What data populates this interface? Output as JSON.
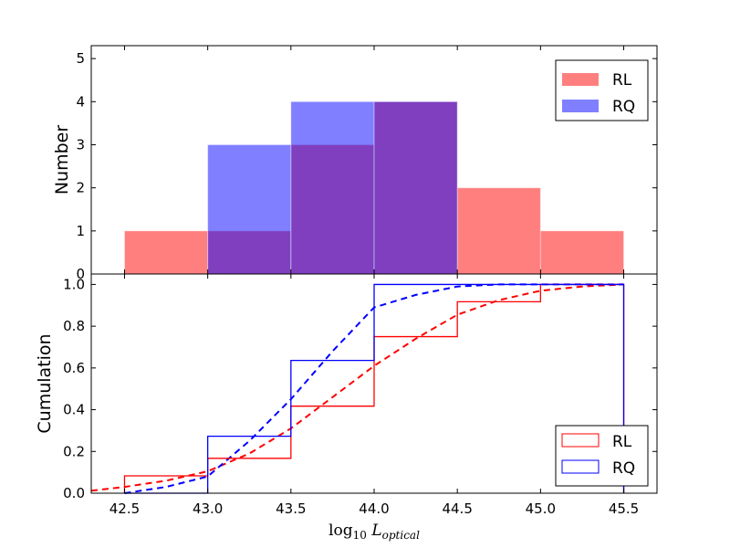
{
  "chart_data": [
    {
      "id": "hist",
      "type": "bar",
      "ylabel": "Number",
      "xlim": [
        42.3,
        45.7
      ],
      "ylim": [
        0,
        5.3
      ],
      "yticks": [
        0,
        1,
        2,
        3,
        4,
        5
      ],
      "bin_edges": [
        42.5,
        43.0,
        43.5,
        44.0,
        44.5,
        45.0,
        45.5
      ],
      "series": [
        {
          "name": "RL",
          "color": "#ff0000",
          "alpha": 0.5,
          "values": [
            1,
            1,
            3,
            4,
            2,
            1
          ]
        },
        {
          "name": "RQ",
          "color": "#0000ff",
          "alpha": 0.5,
          "values": [
            0,
            3,
            4,
            4,
            0,
            0
          ]
        }
      ],
      "legend": {
        "position": "top-right",
        "entries": [
          "RL",
          "RQ"
        ]
      }
    },
    {
      "id": "cum",
      "type": "line",
      "ylabel": "Cumulation",
      "xlabel_html": "log<tspan font-size='12' dy='4'>10</tspan><tspan dy='-4' font-style='italic'> L</tspan><tspan font-size='12' dy='4' font-style='italic'>optical</tspan>",
      "xlim": [
        42.3,
        45.7
      ],
      "ylim": [
        0,
        1.05
      ],
      "xticks": [
        "42.5",
        "43.0",
        "43.5",
        "44.0",
        "44.5",
        "45.0",
        "45.5"
      ],
      "yticks": [
        "0.0",
        "0.2",
        "0.4",
        "0.6",
        "0.8",
        "1.0"
      ],
      "step_series": [
        {
          "name": "RL",
          "color": "#ff0000",
          "edges": [
            42.5,
            43.0,
            43.5,
            44.0,
            44.5,
            45.0,
            45.5
          ],
          "values": [
            0.083,
            0.167,
            0.417,
            0.75,
            0.917,
            1.0
          ]
        },
        {
          "name": "RQ",
          "color": "#0000ff",
          "edges": [
            42.5,
            43.0,
            43.5,
            44.0,
            44.5,
            45.0,
            45.5
          ],
          "values": [
            0.0,
            0.273,
            0.636,
            1.0,
            1.0,
            1.0
          ]
        }
      ],
      "fit_series": [
        {
          "name": "RL fit",
          "color": "#ff0000",
          "x": [
            42.3,
            42.5,
            42.75,
            43.0,
            43.25,
            43.5,
            43.75,
            44.0,
            44.25,
            44.5,
            44.75,
            45.0,
            45.25,
            45.5
          ],
          "y": [
            0.012,
            0.03,
            0.06,
            0.105,
            0.19,
            0.31,
            0.46,
            0.61,
            0.74,
            0.855,
            0.925,
            0.97,
            0.99,
            1.0
          ]
        },
        {
          "name": "RQ fit",
          "color": "#0000ff",
          "x": [
            42.5,
            42.75,
            43.0,
            43.25,
            43.5,
            43.75,
            44.0,
            44.25,
            44.5,
            44.75,
            45.0,
            45.25,
            45.5
          ],
          "y": [
            0.0,
            0.03,
            0.08,
            0.25,
            0.45,
            0.68,
            0.89,
            0.95,
            0.99,
            1.0,
            1.0,
            1.0,
            1.0
          ]
        }
      ],
      "legend": {
        "position": "bottom-right",
        "entries": [
          "RL",
          "RQ"
        ]
      }
    }
  ]
}
